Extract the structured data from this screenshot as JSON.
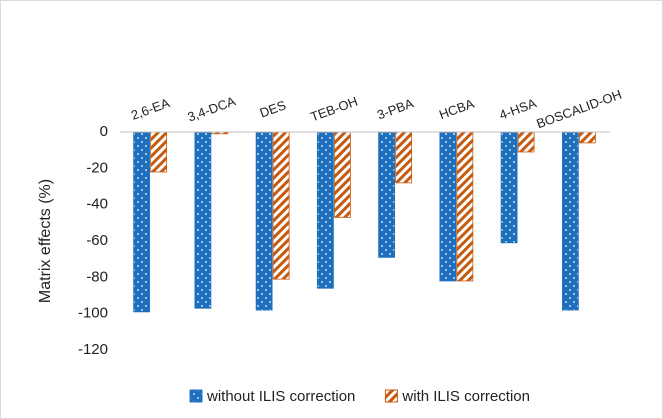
{
  "chart_data": {
    "type": "bar",
    "y_label": "Matrix effects (%)",
    "categories": [
      "2,6-EA",
      "3,4-DCA",
      "DES",
      "TEB-OH",
      "3-PBA",
      "HCBA",
      "4-HSA",
      "BOSCALID-OH"
    ],
    "series": [
      {
        "name": "without ILIS correction",
        "color": "#1f6fbf",
        "values": [
          -99,
          -97,
          -98,
          -86,
          -69,
          -82,
          -61,
          -98
        ]
      },
      {
        "name": "with ILIS correction",
        "color": "#c55a11",
        "values": [
          -22,
          -1,
          -81,
          -47,
          -28,
          -82,
          -11,
          -6
        ]
      }
    ],
    "ylim": [
      -120,
      0
    ],
    "yticks": [
      0,
      -20,
      -40,
      -60,
      -80,
      -100,
      -120
    ]
  }
}
